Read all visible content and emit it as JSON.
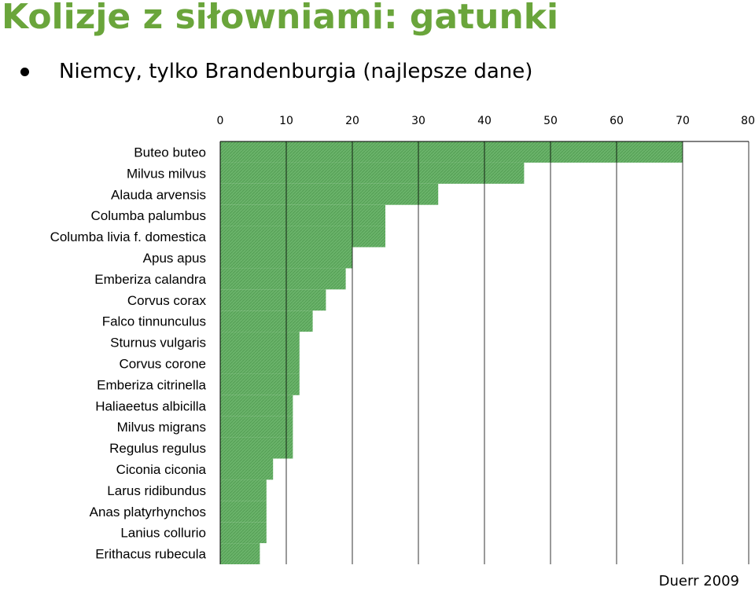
{
  "header": {
    "title": "Kolizje z siłowniami: gatunki",
    "bullet": "Niemcy, tylko Brandenburgia (najlepsze dane)"
  },
  "source": "Duerr 2009",
  "colors": {
    "title": "#6aa53b",
    "bar": "#6ab36a",
    "grid": "#000000"
  },
  "chart_data": {
    "type": "bar",
    "orientation": "horizontal",
    "categories": [
      "Buteo buteo",
      "Milvus milvus",
      "Alauda arvensis",
      "Columba palumbus",
      "Columba livia f. domestica",
      "Apus apus",
      "Emberiza calandra",
      "Corvus corax",
      "Falco tinnunculus",
      "Sturnus vulgaris",
      "Corvus corone",
      "Emberiza citrinella",
      "Haliaeetus albicilla",
      "Milvus migrans",
      "Regulus regulus",
      "Ciconia ciconia",
      "Larus ridibundus",
      "Anas platyrhynchos",
      "Lanius collurio",
      "Erithacus rubecula"
    ],
    "values": [
      70,
      46,
      33,
      25,
      25,
      20,
      19,
      16,
      14,
      12,
      12,
      12,
      11,
      11,
      11,
      8,
      7,
      7,
      7,
      6
    ],
    "xlim": [
      0,
      80
    ],
    "xticks": [
      "0",
      "10",
      "20",
      "30",
      "40",
      "50",
      "60",
      "70",
      "80"
    ],
    "axis_position": "top",
    "grid": true,
    "legend": "none"
  }
}
